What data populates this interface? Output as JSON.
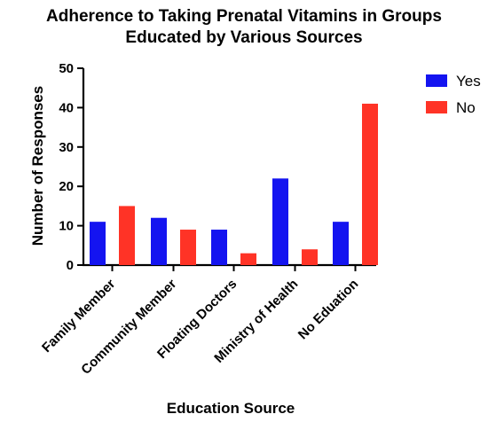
{
  "chart_data": {
    "type": "bar",
    "title_lines": [
      "Adherence to Taking Prenatal Vitamins in Groups",
      "Educated by Various Sources"
    ],
    "xlabel": "Education Source",
    "ylabel": "Number of Responses",
    "categories": [
      "Family Member",
      "Community Member",
      "Floating Doctors",
      "Ministry of Health",
      "No Eduation"
    ],
    "series": [
      {
        "name": "Yes",
        "color": "#1414f0",
        "values": [
          11,
          12,
          9,
          22,
          11
        ]
      },
      {
        "name": "No",
        "color": "#ff3326",
        "values": [
          15,
          9,
          3,
          4,
          41
        ]
      }
    ],
    "ylim": [
      0,
      50
    ],
    "yticks": [
      "0",
      "10",
      "20",
      "30",
      "40",
      "50"
    ],
    "grid": false,
    "legend_position": "top-right"
  }
}
